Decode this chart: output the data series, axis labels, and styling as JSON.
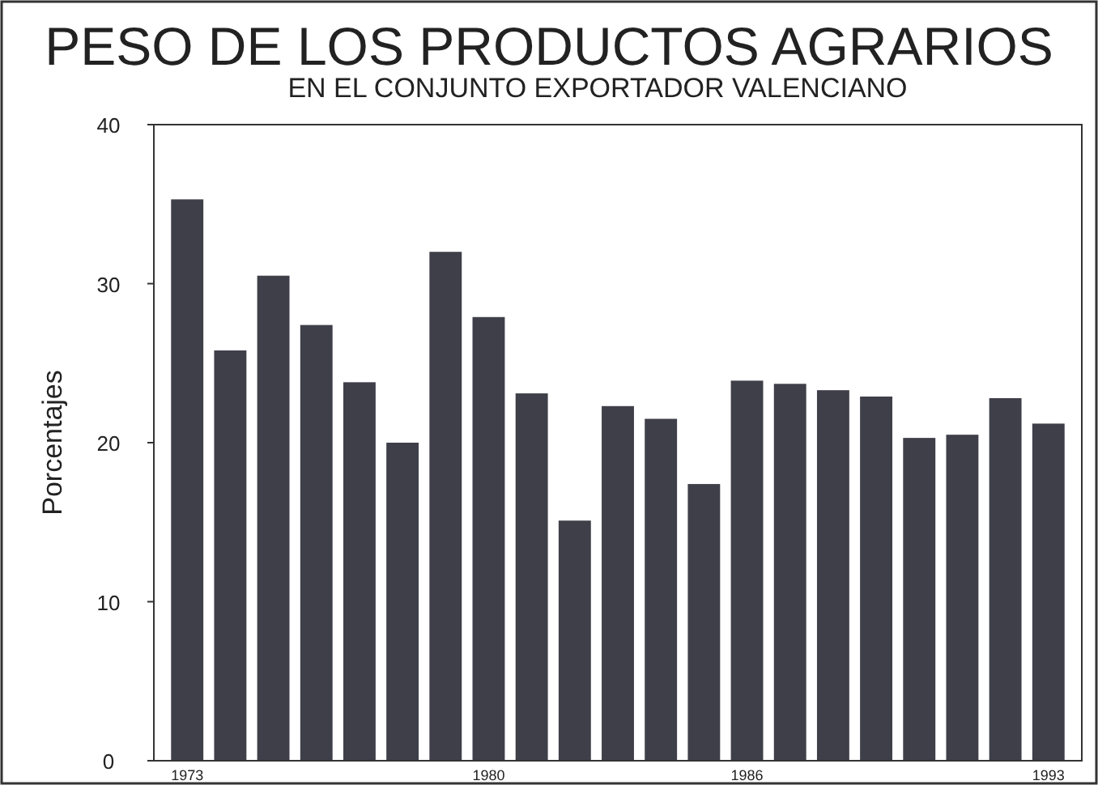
{
  "chart_data": {
    "type": "bar",
    "title": "PESO DE LOS PRODUCTOS AGRARIOS",
    "subtitle": "EN EL CONJUNTO EXPORTADOR VALENCIANO",
    "ylabel": "Porcentajes",
    "categories": [
      "1973",
      null,
      null,
      null,
      null,
      null,
      null,
      "1980",
      null,
      null,
      null,
      null,
      null,
      "1986",
      null,
      null,
      null,
      null,
      null,
      null,
      "1993"
    ],
    "values": [
      35.3,
      25.8,
      30.5,
      27.4,
      23.8,
      20.0,
      32.0,
      27.9,
      23.1,
      15.1,
      22.3,
      21.5,
      17.4,
      23.9,
      23.7,
      23.3,
      22.9,
      20.3,
      20.5,
      22.8,
      21.2
    ],
    "color": "#3f3f4a",
    "ylim": [
      0,
      40
    ],
    "yticks": [
      0,
      10,
      20,
      30,
      40
    ],
    "grid": false
  }
}
